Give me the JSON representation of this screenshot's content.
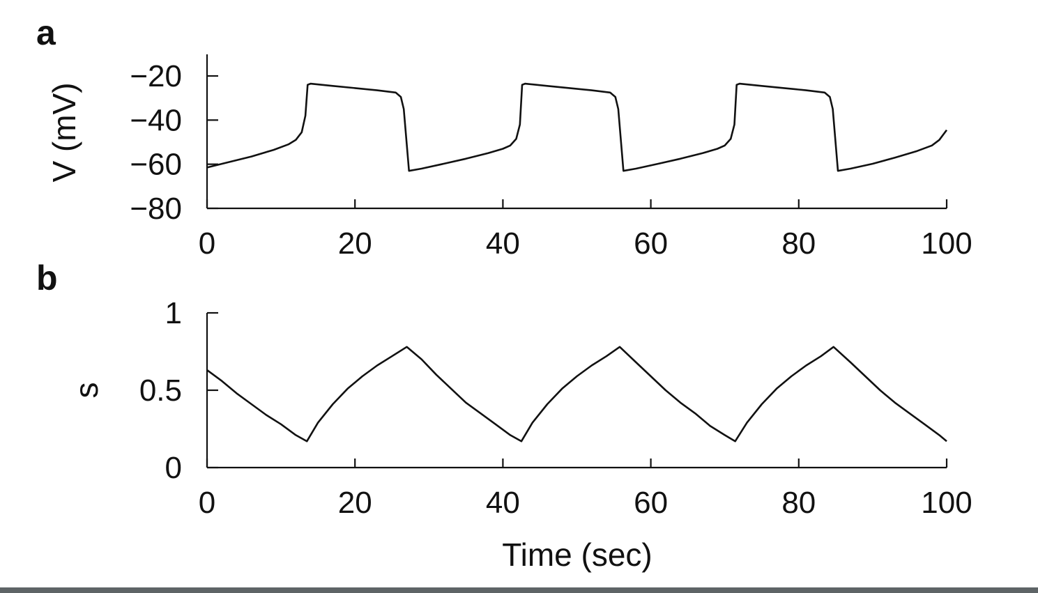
{
  "chart_data": [
    {
      "type": "line",
      "panel_label": "a",
      "ylabel": "V (mV)",
      "xlabel": "",
      "xlim": [
        0,
        100
      ],
      "ylim": [
        -80,
        -10
      ],
      "xticks": [
        0,
        20,
        40,
        60,
        80,
        100
      ],
      "xtick_labels": [
        "0",
        "20",
        "40",
        "60",
        "80",
        "100"
      ],
      "yticks": [
        -80,
        -60,
        -40,
        -20
      ],
      "ytick_labels": [
        "−80",
        "−60",
        "−40",
        "−20"
      ],
      "grid": false,
      "series": [
        {
          "color": "#111111",
          "x": [
            0,
            3,
            6,
            9,
            11,
            12,
            12.8,
            13.3,
            13.6,
            14,
            17,
            20,
            23,
            25.5,
            26.2,
            26.6,
            27.3,
            29,
            32,
            35,
            38,
            40,
            41,
            41.8,
            42.3,
            42.6,
            43,
            46,
            49,
            52,
            54.5,
            55.2,
            55.6,
            56.3,
            58,
            61,
            64,
            67,
            69,
            70,
            70.8,
            71.3,
            71.6,
            72,
            75,
            78,
            81,
            83.5,
            84.2,
            84.6,
            85.3,
            87,
            90,
            93,
            96,
            98,
            99,
            100
          ],
          "y": [
            -61.5,
            -59,
            -56.5,
            -53.5,
            -51,
            -49,
            -45.5,
            -38,
            -24,
            -23.5,
            -24.5,
            -25.5,
            -26.5,
            -27.5,
            -29.5,
            -35,
            -63,
            -62,
            -59.8,
            -57.5,
            -55,
            -53,
            -51.5,
            -48.5,
            -42,
            -24,
            -23.5,
            -24.5,
            -25.5,
            -26.5,
            -27.5,
            -29.5,
            -35,
            -63,
            -62,
            -59.8,
            -57.5,
            -55,
            -53,
            -51.5,
            -48.5,
            -42,
            -24,
            -23.5,
            -24.5,
            -25.5,
            -26.5,
            -27.5,
            -29.5,
            -35,
            -63,
            -62,
            -59.8,
            -57,
            -54,
            -51.5,
            -49,
            -44.5
          ]
        }
      ]
    },
    {
      "type": "line",
      "panel_label": "b",
      "ylabel": "s",
      "xlabel": "Time (sec)",
      "xlim": [
        0,
        100
      ],
      "ylim": [
        0,
        1
      ],
      "xticks": [
        0,
        20,
        40,
        60,
        80,
        100
      ],
      "xtick_labels": [
        "0",
        "20",
        "40",
        "60",
        "80",
        "100"
      ],
      "yticks": [
        0,
        0.5,
        1
      ],
      "ytick_labels": [
        "0",
        "0.5",
        "1"
      ],
      "grid": false,
      "series": [
        {
          "color": "#111111",
          "x": [
            0,
            2,
            4,
            6,
            8,
            10,
            12,
            13.5,
            15,
            17,
            19,
            21,
            23,
            25,
            27,
            29,
            31,
            33,
            35,
            37,
            39,
            41,
            42.5,
            44,
            46,
            48,
            50,
            52,
            54,
            55.8,
            58,
            60,
            62,
            64,
            66,
            68,
            70,
            71.4,
            73,
            75,
            77,
            79,
            81,
            83,
            84.7,
            87,
            89,
            91,
            93,
            95,
            97,
            99,
            100
          ],
          "y": [
            0.63,
            0.56,
            0.48,
            0.41,
            0.34,
            0.28,
            0.21,
            0.17,
            0.29,
            0.41,
            0.51,
            0.59,
            0.66,
            0.72,
            0.78,
            0.7,
            0.6,
            0.51,
            0.42,
            0.35,
            0.28,
            0.21,
            0.17,
            0.29,
            0.41,
            0.51,
            0.59,
            0.66,
            0.72,
            0.78,
            0.68,
            0.59,
            0.5,
            0.42,
            0.35,
            0.27,
            0.21,
            0.17,
            0.29,
            0.41,
            0.51,
            0.59,
            0.66,
            0.72,
            0.78,
            0.68,
            0.59,
            0.5,
            0.42,
            0.35,
            0.28,
            0.21,
            0.17
          ]
        }
      ]
    }
  ]
}
